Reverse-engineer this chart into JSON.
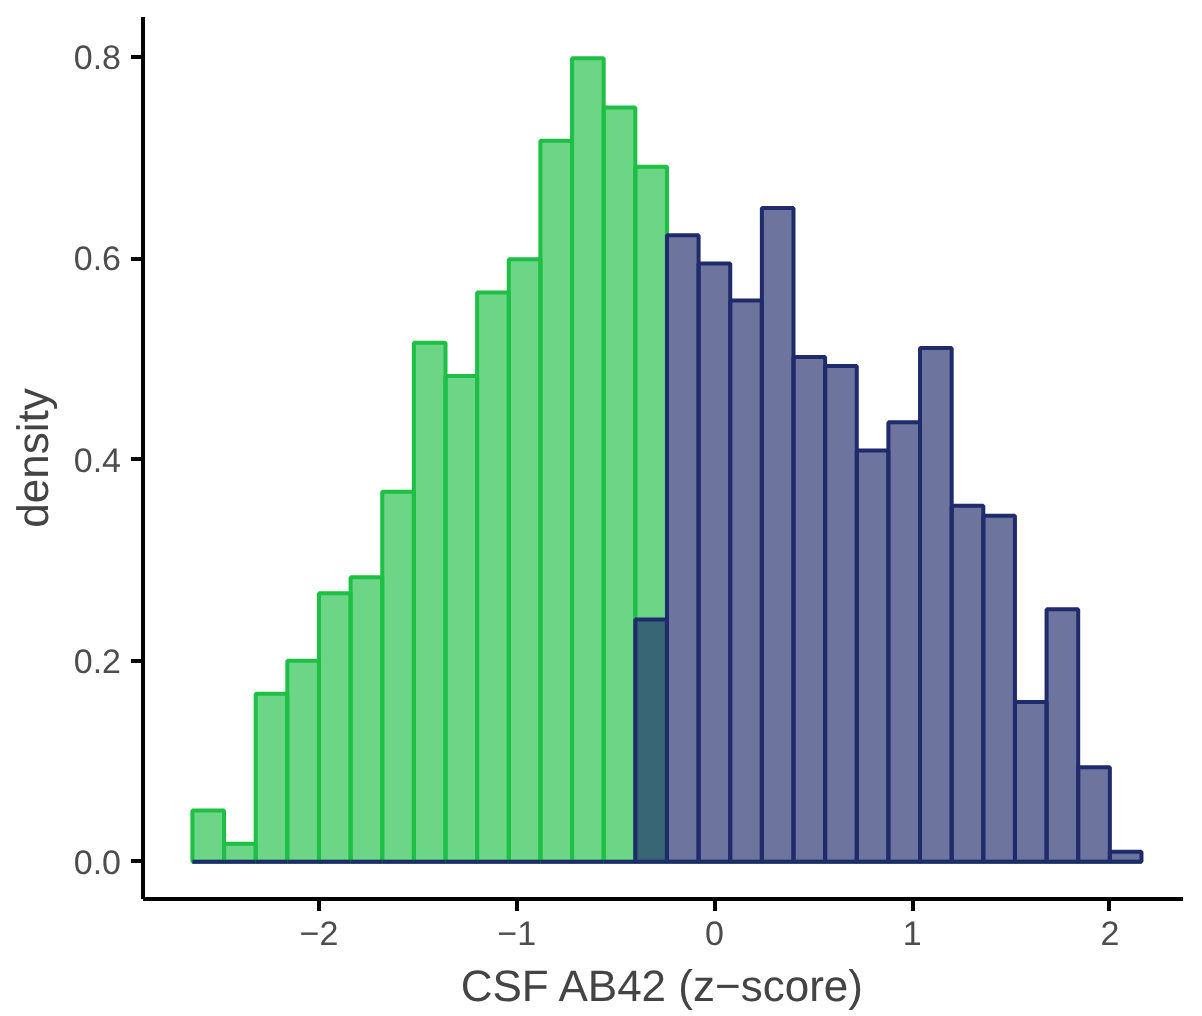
{
  "chart_data": {
    "type": "histogram",
    "xlabel": "CSF AB42 (z−score)",
    "ylabel": "density",
    "bins": [
      -2.64,
      -2.48,
      -2.32,
      -2.16,
      -2.0,
      -1.84,
      -1.68,
      -1.52,
      -1.36,
      -1.2,
      -1.04,
      -0.88,
      -0.72,
      -0.56,
      -0.4,
      -0.24,
      -0.08,
      0.08,
      0.24,
      0.4,
      0.56,
      0.72,
      0.88,
      1.04,
      1.2,
      1.36,
      1.52,
      1.68,
      1.84,
      2.0,
      2.16
    ],
    "series": [
      {
        "color": "#1dbf45",
        "values": [
          0.051,
          0.018,
          0.167,
          0.2,
          0.267,
          0.283,
          0.368,
          0.516,
          0.483,
          0.566,
          0.599,
          0.717,
          0.799,
          0.75,
          0.691,
          0,
          0,
          0,
          0,
          0,
          0,
          0,
          0,
          0,
          0,
          0,
          0,
          0,
          0,
          0
        ]
      },
      {
        "color": "#1f2b6b",
        "values": [
          0,
          0,
          0,
          0,
          0,
          0,
          0,
          0,
          0,
          0,
          0,
          0,
          0,
          0,
          0.241,
          0.623,
          0.595,
          0.558,
          0.65,
          0.502,
          0.493,
          0.409,
          0.437,
          0.511,
          0.354,
          0.344,
          0.159,
          0.251,
          0.094,
          0.01
        ]
      }
    ],
    "xlim": [
      -2.89,
      2.37
    ],
    "ylim": [
      -0.037,
      0.84
    ],
    "xticks": [
      {
        "value": -2,
        "label": "−2"
      },
      {
        "value": -1,
        "label": "−1"
      },
      0,
      1,
      2
    ],
    "yticks": [
      {
        "value": 0,
        "label": "0.0"
      },
      {
        "value": 0.2,
        "label": "0.2"
      },
      {
        "value": 0.4,
        "label": "0.4"
      },
      {
        "value": 0.6,
        "label": "0.6"
      },
      {
        "value": 0.8,
        "label": "0.8"
      }
    ],
    "grid": false
  }
}
